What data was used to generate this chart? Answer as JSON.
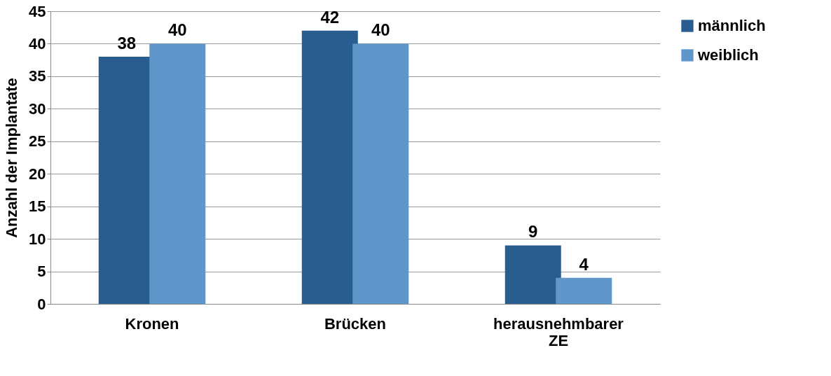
{
  "chart_data": {
    "type": "bar",
    "ylabel": "Anzahl der Implantate",
    "categories": [
      "Kronen",
      "Brücken",
      "herausnehmbarer ZE"
    ],
    "series": [
      {
        "name": "männlich",
        "color": "#2a5d8f",
        "values": [
          38,
          42,
          9
        ]
      },
      {
        "name": "weiblich",
        "color": "#6097cb",
        "values": [
          40,
          40,
          4
        ]
      }
    ],
    "ylim": [
      0,
      45
    ],
    "yticks": [
      0,
      5,
      10,
      15,
      20,
      25,
      30,
      35,
      40,
      45
    ],
    "grid": "y",
    "legend": "right",
    "data_labels": true
  }
}
